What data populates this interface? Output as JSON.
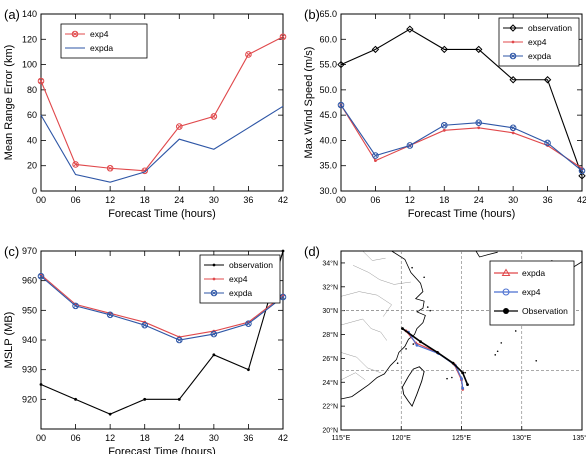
{
  "chart_data": [
    {
      "type": "line",
      "panel_label": "(a)",
      "xlabel": "Forecast Time (hours)",
      "ylabel": "Mean Range Error (km)",
      "x_ticks": [
        "00",
        "06",
        "12",
        "18",
        "24",
        "30",
        "36",
        "42"
      ],
      "x": [
        0,
        6,
        12,
        18,
        24,
        30,
        36,
        42
      ],
      "ylim": [
        0,
        140
      ],
      "y_ticks": [
        "0",
        "20",
        "40",
        "60",
        "80",
        "100",
        "120",
        "140"
      ],
      "legend": "top-left",
      "series": [
        {
          "name": "exp4",
          "color": "#e0484b",
          "marker": "circle-x",
          "values": [
            87,
            21,
            18,
            16,
            51,
            59,
            108,
            122
          ]
        },
        {
          "name": "expda",
          "color": "#2e56a6",
          "marker": "none",
          "values": [
            60,
            13,
            7,
            15,
            41,
            33,
            50,
            67
          ]
        }
      ]
    },
    {
      "type": "line",
      "panel_label": "(b)",
      "xlabel": "Forecast Time (hours)",
      "ylabel": "Max Wind Speed (m/s)",
      "x_ticks": [
        "00",
        "06",
        "12",
        "18",
        "24",
        "30",
        "36",
        "42"
      ],
      "x": [
        0,
        6,
        12,
        18,
        24,
        30,
        36,
        42
      ],
      "ylim": [
        30,
        65
      ],
      "y_ticks": [
        "30.0",
        "35.0",
        "40.0",
        "45.0",
        "50.0",
        "55.0",
        "60.0",
        "65.0"
      ],
      "legend": "top-right",
      "series": [
        {
          "name": "observation",
          "color": "#000000",
          "marker": "diamond",
          "values": [
            55,
            58,
            62,
            58,
            58,
            52,
            52,
            33
          ]
        },
        {
          "name": "exp4",
          "color": "#e0484b",
          "marker": "dot",
          "values": [
            47,
            36,
            39,
            42,
            42.5,
            41.5,
            39,
            34.5
          ]
        },
        {
          "name": "expda",
          "color": "#2e56a6",
          "marker": "circle-x",
          "values": [
            47,
            37,
            39,
            43,
            43.5,
            42.5,
            39.5,
            34
          ]
        }
      ]
    },
    {
      "type": "line",
      "panel_label": "(c)",
      "xlabel": "Forecast Time (hours)",
      "ylabel": "MSLP (MB)",
      "x_ticks": [
        "00",
        "06",
        "12",
        "18",
        "24",
        "30",
        "36",
        "42"
      ],
      "x": [
        0,
        6,
        12,
        18,
        24,
        30,
        36,
        42
      ],
      "ylim": [
        910,
        970
      ],
      "y_ticks": [
        "920",
        "930",
        "940",
        "950",
        "960",
        "970"
      ],
      "legend": "top-right",
      "series": [
        {
          "name": "observation",
          "color": "#000000",
          "marker": "dot",
          "values": [
            925,
            920,
            915,
            920,
            920,
            935,
            930,
            970
          ]
        },
        {
          "name": "exp4",
          "color": "#e0484b",
          "marker": "dot",
          "values": [
            962,
            952,
            949,
            946,
            941,
            943,
            946,
            955
          ]
        },
        {
          "name": "expda",
          "color": "#2e56a6",
          "marker": "circle-x",
          "values": [
            961.5,
            951.5,
            948.5,
            945,
            940,
            942,
            945.5,
            954.5
          ]
        }
      ]
    },
    {
      "type": "map",
      "panel_label": "(d)",
      "lon_ticks": [
        "115°E",
        "120°E",
        "125°E",
        "130°E",
        "135°E"
      ],
      "lat_ticks": [
        "20°N",
        "22°N",
        "24°N",
        "26°N",
        "28°N",
        "30°N",
        "32°N",
        "34°N"
      ],
      "lon_range": [
        115,
        135
      ],
      "lat_range": [
        20,
        35
      ],
      "legend": "top-right",
      "tracks": [
        {
          "name": "expda",
          "color": "#e0484b",
          "marker": "triangle",
          "points": [
            [
              120.4,
              28.3
            ],
            [
              121.2,
              27.3
            ],
            [
              123.0,
              26.5
            ],
            [
              124.4,
              25.5
            ],
            [
              125.0,
              24.2
            ],
            [
              125.1,
              23.4
            ]
          ]
        },
        {
          "name": "exp4",
          "color": "#4a6fd0",
          "marker": "circle",
          "points": [
            [
              120.6,
              28.2
            ],
            [
              121.3,
              27.1
            ],
            [
              123.1,
              26.4
            ],
            [
              124.5,
              25.4
            ],
            [
              125.0,
              24.3
            ],
            [
              125.1,
              23.5
            ]
          ]
        },
        {
          "name": "Observation",
          "color": "#000000",
          "marker": "dot",
          "points": [
            [
              120.1,
              28.5
            ],
            [
              121.6,
              27.4
            ],
            [
              123.0,
              26.5
            ],
            [
              124.3,
              25.6
            ],
            [
              125.1,
              24.8
            ],
            [
              125.5,
              23.8
            ]
          ]
        }
      ]
    }
  ]
}
